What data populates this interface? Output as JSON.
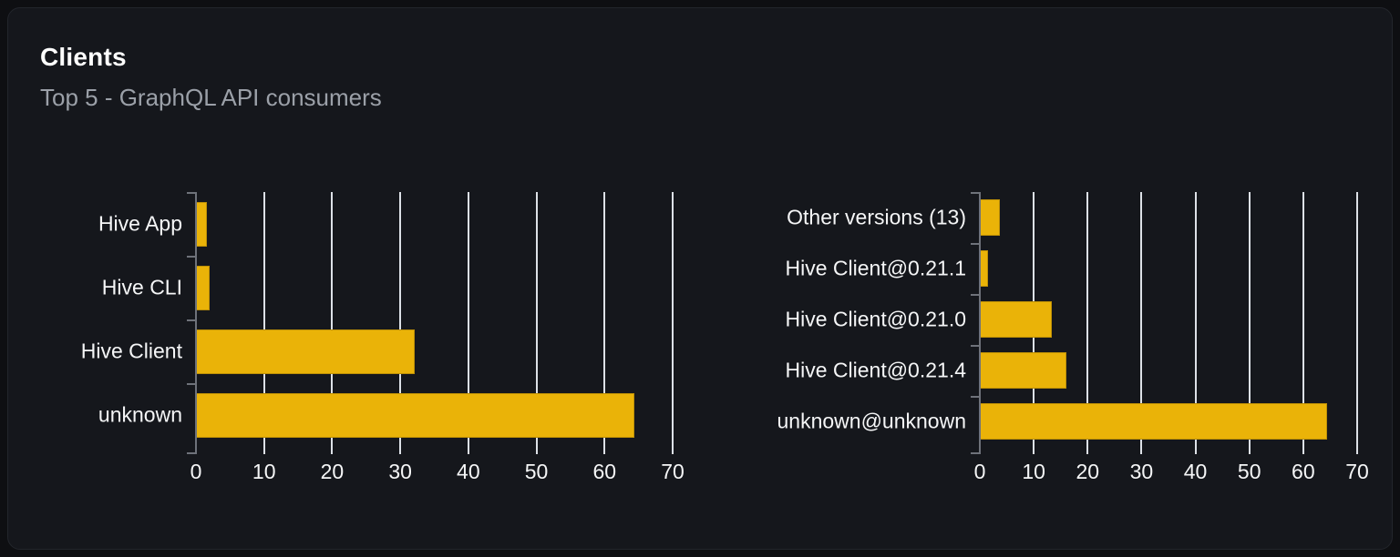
{
  "header": {
    "title": "Clients",
    "subtitle": "Top 5 - GraphQL API consumers"
  },
  "colors": {
    "page_bg": "#0e0f12",
    "card_bg": "#15171c",
    "card_border": "#23262c",
    "bar": "#eab308",
    "grid": "#dde1e7",
    "axis": "#6e727a",
    "title_text": "#ffffff",
    "subtitle_text": "#9ba0a8",
    "label_text": "#f5f6f7"
  },
  "chart_data": [
    {
      "type": "bar",
      "orientation": "horizontal",
      "name": "clients-by-name",
      "categories": [
        "Hive App",
        "Hive CLI",
        "Hive Client",
        "unknown"
      ],
      "values": [
        1.6,
        2.0,
        32.1,
        64.4
      ],
      "xlim": [
        0,
        70
      ],
      "xticks": [
        0,
        10,
        20,
        30,
        40,
        50,
        60,
        70
      ],
      "grid": true,
      "legend": false,
      "xlabel": "",
      "ylabel": ""
    },
    {
      "type": "bar",
      "orientation": "horizontal",
      "name": "clients-by-version",
      "categories": [
        "Other versions (13)",
        "Hive Client@0.21.1",
        "Hive Client@0.21.0",
        "Hive Client@0.21.4",
        "unknown@unknown"
      ],
      "values": [
        3.7,
        1.6,
        13.4,
        16.1,
        64.4
      ],
      "xlim": [
        0,
        70
      ],
      "xticks": [
        0,
        10,
        20,
        30,
        40,
        50,
        60,
        70
      ],
      "grid": true,
      "legend": false,
      "xlabel": "",
      "ylabel": ""
    }
  ]
}
